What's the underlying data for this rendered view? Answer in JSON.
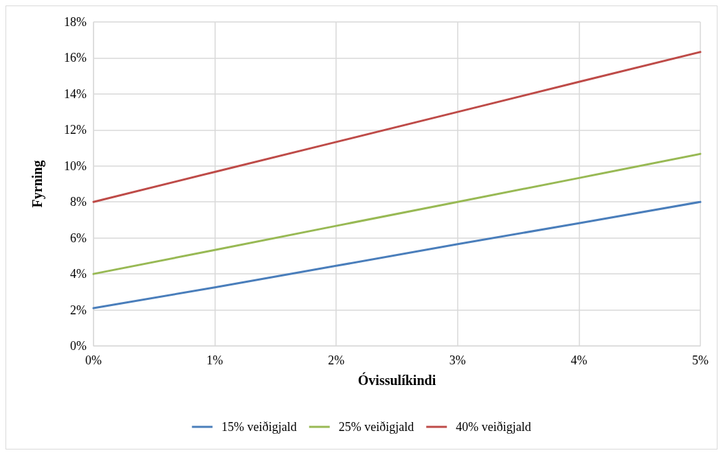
{
  "chart_data": {
    "type": "line",
    "xlabel": "Óvissulíkindi",
    "ylabel": "Fyrning",
    "x": [
      0,
      1,
      2,
      3,
      4,
      5
    ],
    "series": [
      {
        "name": "15% veiðigjald",
        "color": "#4a7ebb",
        "values": [
          2.1,
          3.25,
          4.45,
          5.65,
          6.82,
          8.0
        ]
      },
      {
        "name": "25% veiðigjald",
        "color": "#98b954",
        "values": [
          4.0,
          5.33,
          6.67,
          8.0,
          9.33,
          10.67
        ]
      },
      {
        "name": "40% veiðigjald",
        "color": "#be4b48",
        "values": [
          8.0,
          9.67,
          11.33,
          13.0,
          14.67,
          16.33
        ]
      }
    ],
    "xlim": [
      0,
      5
    ],
    "xticks": [
      {
        "value": 0,
        "label": "0%"
      },
      {
        "value": 1,
        "label": "1%"
      },
      {
        "value": 2,
        "label": "2%"
      },
      {
        "value": 3,
        "label": "3%"
      },
      {
        "value": 4,
        "label": "4%"
      },
      {
        "value": 5,
        "label": "5%"
      }
    ],
    "ylim": [
      0,
      18
    ],
    "yticks": [
      {
        "value": 0,
        "label": "0%"
      },
      {
        "value": 2,
        "label": "2%"
      },
      {
        "value": 4,
        "label": "4%"
      },
      {
        "value": 6,
        "label": "6%"
      },
      {
        "value": 8,
        "label": "8%"
      },
      {
        "value": 10,
        "label": "10%"
      },
      {
        "value": 12,
        "label": "12%"
      },
      {
        "value": 14,
        "label": "14%"
      },
      {
        "value": 16,
        "label": "16%"
      },
      {
        "value": 18,
        "label": "18%"
      }
    ],
    "grid": true,
    "legend": "bottom",
    "marker": "none",
    "line_style": "solid"
  }
}
